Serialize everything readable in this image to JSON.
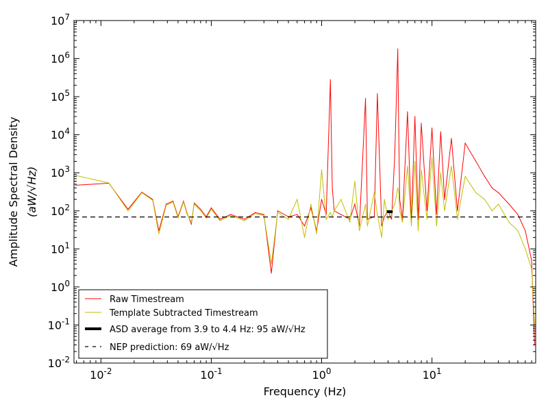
{
  "chart_data": {
    "type": "line",
    "xlabel": "Frequency (Hz)",
    "ylabel": "Amplitude Spectral Density",
    "ylabel_units": "(aW/√Hz)",
    "xscale": "log",
    "yscale": "log",
    "xlim": [
      0.0057,
      87
    ],
    "ylim": [
      0.01,
      10000000
    ],
    "grid": false,
    "legend_position": "lower-left",
    "x_tick_labels": [
      "10-2",
      "10-1",
      "100",
      "101"
    ],
    "y_tick_labels": [
      "10-2",
      "10-1",
      "100",
      "101",
      "102",
      "103",
      "104",
      "105",
      "106",
      "107"
    ],
    "colors": {
      "raw": "#ff0000",
      "template": "#bfbf00",
      "asd": "#000000",
      "nep": "#000000"
    },
    "series": [
      {
        "name": "Raw Timestream",
        "key": "raw",
        "x": [
          0.0059,
          0.0118,
          0.0176,
          0.0235,
          0.0294,
          0.0335,
          0.039,
          0.045,
          0.05,
          0.056,
          0.06,
          0.066,
          0.07,
          0.08,
          0.09,
          0.1,
          0.12,
          0.15,
          0.2,
          0.25,
          0.3,
          0.35,
          0.4,
          0.5,
          0.6,
          0.7,
          0.8,
          0.9,
          1.0,
          1.1,
          1.2,
          1.25,
          1.3,
          1.5,
          1.8,
          2.0,
          2.2,
          2.5,
          2.6,
          3.0,
          3.2,
          3.5,
          3.7,
          4.0,
          4.3,
          4.6,
          4.9,
          5.0,
          5.1,
          5.4,
          6.0,
          6.5,
          7.0,
          7.5,
          8.0,
          9.0,
          10.0,
          11.0,
          12.0,
          13.0,
          15.0,
          17.0,
          20.0,
          25.0,
          30.0,
          35.0,
          40.0,
          50.0,
          60.0,
          70.0,
          80.0,
          85.0
        ],
        "y": [
          470,
          530,
          110,
          310,
          200,
          30,
          150,
          180,
          70,
          180,
          90,
          45,
          160,
          110,
          70,
          120,
          60,
          80,
          60,
          90,
          80,
          2.3,
          100,
          70,
          80,
          40,
          120,
          30,
          200,
          80,
          280000,
          400,
          100,
          80,
          60,
          150,
          40,
          90000,
          60,
          70,
          120000,
          40,
          70,
          100,
          60,
          3000,
          1800000,
          12000,
          200,
          60,
          40000,
          50,
          30000,
          60,
          20000,
          100,
          15000,
          80,
          12000,
          200,
          8000,
          100,
          6000,
          2000,
          800,
          400,
          300,
          150,
          80,
          30,
          5,
          0.03
        ]
      },
      {
        "name": "Template Subtracted Timestream",
        "key": "template",
        "x": [
          0.0059,
          0.0118,
          0.0176,
          0.0235,
          0.0294,
          0.0335,
          0.039,
          0.045,
          0.05,
          0.056,
          0.06,
          0.066,
          0.07,
          0.08,
          0.09,
          0.1,
          0.12,
          0.15,
          0.2,
          0.25,
          0.3,
          0.35,
          0.4,
          0.5,
          0.6,
          0.7,
          0.8,
          0.9,
          1.0,
          1.1,
          1.2,
          1.25,
          1.3,
          1.5,
          1.8,
          2.0,
          2.2,
          2.5,
          2.6,
          3.0,
          3.2,
          3.5,
          3.7,
          4.0,
          4.3,
          4.6,
          4.9,
          5.0,
          5.1,
          5.4,
          6.0,
          6.5,
          7.0,
          7.5,
          8.0,
          9.0,
          10.0,
          11.0,
          12.0,
          13.0,
          15.0,
          17.0,
          20.0,
          25.0,
          30.0,
          35.0,
          40.0,
          50.0,
          60.0,
          70.0,
          80.0,
          85.0
        ],
        "y": [
          850,
          540,
          100,
          300,
          190,
          25,
          140,
          170,
          65,
          170,
          85,
          50,
          150,
          100,
          65,
          110,
          55,
          75,
          55,
          85,
          75,
          4,
          90,
          60,
          200,
          20,
          150,
          25,
          1200,
          60,
          90,
          70,
          100,
          200,
          50,
          600,
          30,
          150,
          40,
          300,
          80,
          20,
          200,
          60,
          100,
          150,
          400,
          300,
          100,
          50,
          1500,
          40,
          2000,
          30,
          1200,
          60,
          2500,
          40,
          1000,
          100,
          1500,
          60,
          800,
          300,
          200,
          100,
          150,
          50,
          30,
          10,
          3,
          0.1
        ]
      }
    ],
    "legend": [
      {
        "key": "raw",
        "style": "line",
        "label": "Raw Timestream"
      },
      {
        "key": "template",
        "style": "line",
        "label": "Template Subtracted Timestream"
      },
      {
        "key": "asd",
        "style": "thick",
        "label": "ASD average from 3.9 to 4.4 Hz: 95 aW/√Hz"
      },
      {
        "key": "nep",
        "style": "dashed",
        "label": "NEP prediction: 69 aW/√Hz"
      }
    ],
    "asd_average": {
      "x_range": [
        3.9,
        4.4
      ],
      "value": 95
    },
    "nep_prediction": {
      "value": 69
    }
  }
}
